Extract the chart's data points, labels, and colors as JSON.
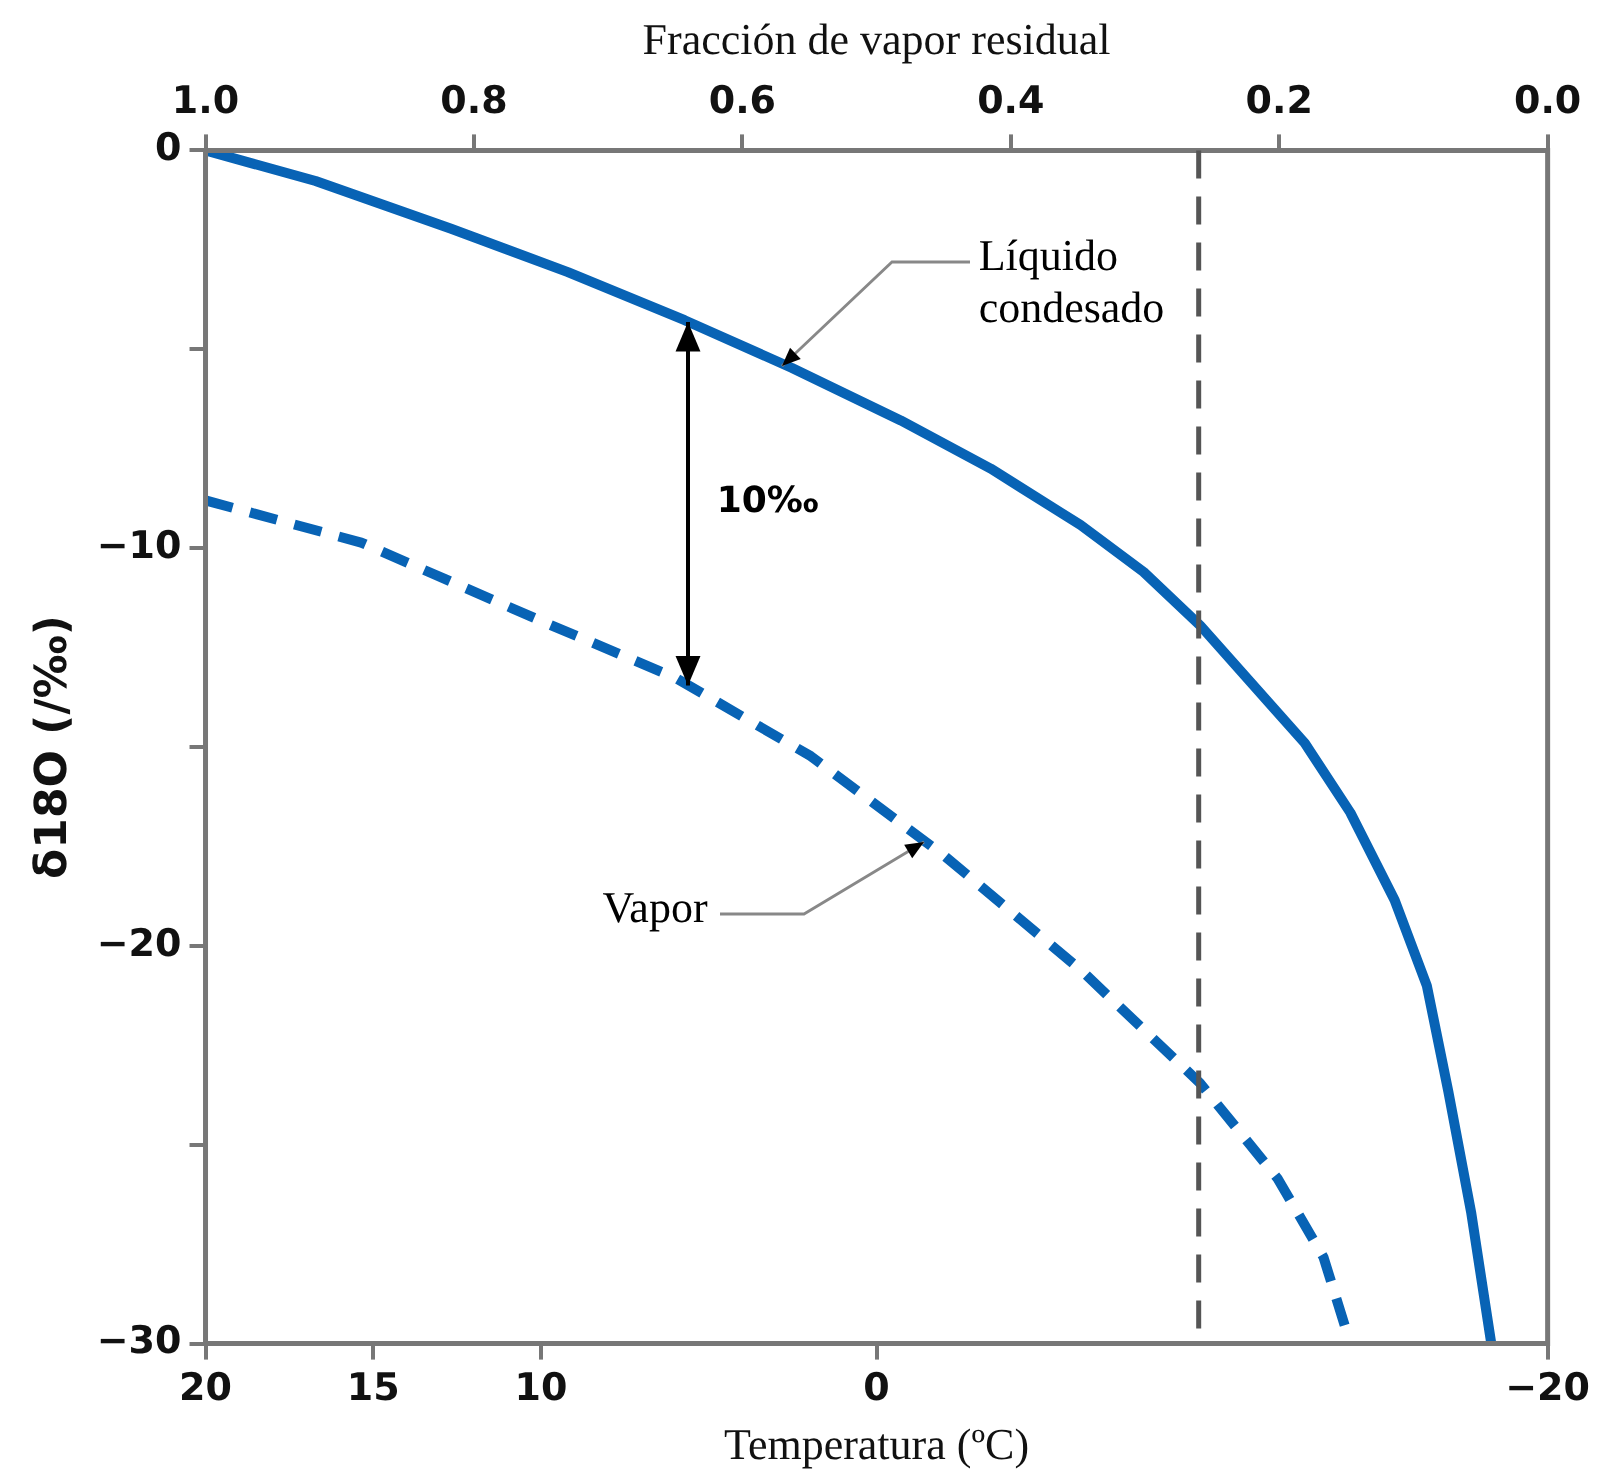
{
  "chart_data": {
    "type": "line",
    "xlabel": "Temperatura (ºC)",
    "x2label": "Fracción de vapor residual",
    "ylabel": "δ18O (/‰)",
    "xlim": [
      20,
      -20
    ],
    "xticks": [
      20,
      15,
      10,
      0,
      -20
    ],
    "x2lim": [
      1,
      0
    ],
    "x2ticks": [
      {
        "value": 1,
        "label": "1.0"
      },
      0.8,
      0.6,
      0.4,
      0.2,
      {
        "value": 0,
        "label": "0.0"
      }
    ],
    "ylim": [
      -30,
      0
    ],
    "yticks": [
      0,
      {
        "value": -5,
        "label": null
      },
      -10,
      {
        "value": -15,
        "label": null
      },
      -20,
      {
        "value": -25,
        "label": null
      },
      -30
    ],
    "grid": false,
    "legend": false,
    "marker": "none",
    "series": [
      {
        "color": "#0863b5",
        "line_style": "solid",
        "axis": "x2",
        "x": [
          1,
          0.918,
          0.817,
          0.73,
          0.643,
          0.563,
          0.482,
          0.415,
          0.348,
          0.301,
          0.259,
          0.181,
          0.147,
          0.114,
          0.09,
          0.074,
          0.057,
          0.042
        ],
        "values": [
          0,
          -0.77,
          -1.97,
          -3.06,
          -4.27,
          -5.47,
          -6.79,
          -8.0,
          -9.42,
          -10.6,
          -11.94,
          -14.9,
          -16.65,
          -18.85,
          -21.0,
          -23.66,
          -26.7,
          -30
        ]
      },
      {
        "color": "#0863b5",
        "line_style": "dashed",
        "axis": "x2",
        "x": [
          1,
          0.884,
          0.75,
          0.65,
          0.549,
          0.449,
          0.348,
          0.259,
          0.201,
          0.167,
          0.147
        ],
        "values": [
          -8.8,
          -9.86,
          -11.83,
          -13.26,
          -15.23,
          -17.75,
          -20.6,
          -23.45,
          -25.86,
          -27.83,
          -30
        ]
      }
    ],
    "ref_lines": [
      {
        "axis": "x2",
        "value": 0.26,
        "color": "#555555",
        "line_style": "dashed"
      }
    ],
    "annotations": [
      {
        "text": "Líquido\ncondesado",
        "x": 2.8,
        "y": -5.2
      },
      "10‰",
      {
        "text": "Vapor",
        "x": -1.4,
        "y": -17.6
      }
    ]
  }
}
